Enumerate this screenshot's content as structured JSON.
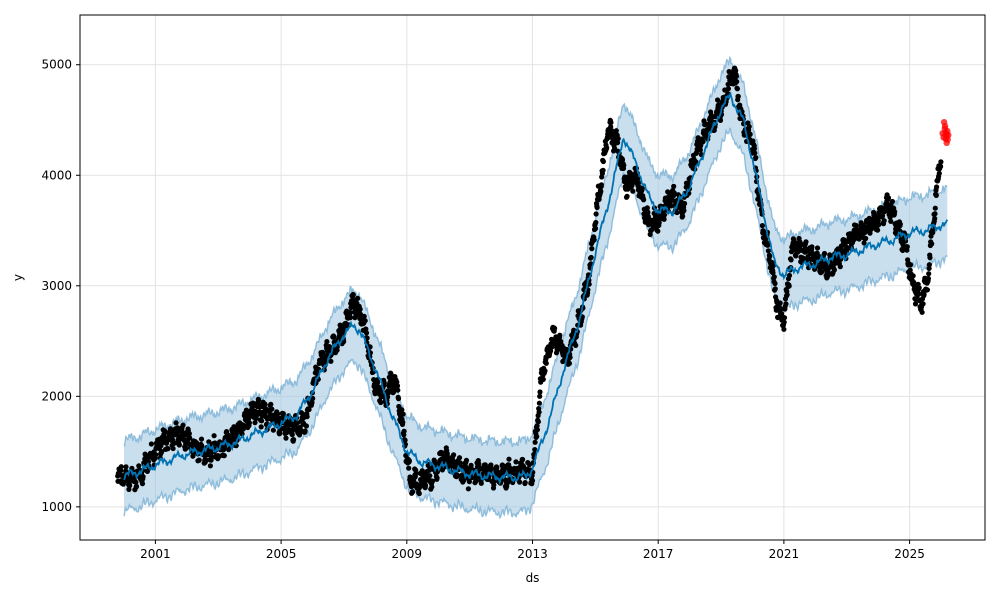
{
  "chart_data": {
    "type": "line",
    "title": "",
    "xlabel": "ds",
    "ylabel": "y",
    "xlim": [
      1998.6,
      2027.4
    ],
    "ylim": [
      700,
      5450
    ],
    "grid": true,
    "x_ticks": [
      {
        "value": 2001,
        "label": "2001"
      },
      {
        "value": 2005,
        "label": "2005"
      },
      {
        "value": 2009,
        "label": "2009"
      },
      {
        "value": 2013,
        "label": "2013"
      },
      {
        "value": 2017,
        "label": "2017"
      },
      {
        "value": 2021,
        "label": "2021"
      },
      {
        "value": 2025,
        "label": "2025"
      }
    ],
    "y_ticks": [
      {
        "value": 1000,
        "label": "1000"
      },
      {
        "value": 2000,
        "label": "2000"
      },
      {
        "value": 3000,
        "label": "3000"
      },
      {
        "value": 4000,
        "label": "4000"
      },
      {
        "value": 5000,
        "label": "5000"
      }
    ],
    "forecast": {
      "x": [
        2000.0,
        2000.5,
        2001.0,
        2001.5,
        2002.0,
        2002.5,
        2003.0,
        2003.5,
        2004.0,
        2004.5,
        2005.0,
        2005.5,
        2006.0,
        2006.5,
        2007.0,
        2007.3,
        2007.5,
        2008.0,
        2008.5,
        2009.0,
        2009.5,
        2010.0,
        2010.5,
        2011.0,
        2011.5,
        2012.0,
        2012.5,
        2012.8,
        2013.0,
        2013.5,
        2014.0,
        2014.5,
        2015.0,
        2015.5,
        2015.9,
        2016.3,
        2016.7,
        2017.0,
        2017.5,
        2018.0,
        2018.5,
        2019.0,
        2019.3,
        2019.7,
        2020.0,
        2020.4,
        2020.7,
        2021.0,
        2021.5,
        2022.0,
        2022.5,
        2023.0,
        2023.5,
        2024.0,
        2024.5,
        2025.0,
        2025.5,
        2026.0,
        2026.2
      ],
      "yhat": [
        1280,
        1320,
        1380,
        1430,
        1480,
        1510,
        1540,
        1580,
        1640,
        1700,
        1760,
        1830,
        2050,
        2350,
        2560,
        2640,
        2600,
        2250,
        1850,
        1500,
        1400,
        1370,
        1330,
        1300,
        1280,
        1270,
        1270,
        1280,
        1350,
        1750,
        2250,
        2700,
        3300,
        3850,
        4350,
        4100,
        3800,
        3680,
        3680,
        3900,
        4250,
        4600,
        4720,
        4500,
        4150,
        3600,
        3200,
        3100,
        3170,
        3200,
        3260,
        3280,
        3330,
        3380,
        3420,
        3480,
        3500,
        3550,
        3550
      ],
      "band_width": 320
    },
    "observed": {
      "x": [
        1999.8,
        2000.2,
        2000.6,
        2001.0,
        2001.3,
        2001.7,
        2002.0,
        2002.5,
        2003.0,
        2003.5,
        2003.9,
        2004.2,
        2004.6,
        2005.0,
        2005.4,
        2005.8,
        2006.2,
        2006.6,
        2007.0,
        2007.3,
        2007.6,
        2008.0,
        2008.3,
        2008.6,
        2008.9,
        2009.1,
        2009.4,
        2009.8,
        2010.2,
        2010.6,
        2011.0,
        2011.4,
        2011.8,
        2012.2,
        2012.6,
        2013.0,
        2013.3,
        2013.7,
        2014.1,
        2014.5,
        2014.8,
        2015.1,
        2015.4,
        2015.7,
        2016.0,
        2016.3,
        2016.7,
        2017.0,
        2017.4,
        2017.8,
        2018.1,
        2018.5,
        2018.8,
        2019.1,
        2019.4,
        2019.7,
        2020.0,
        2020.3,
        2020.6,
        2020.8,
        2021.0,
        2021.3,
        2021.6,
        2022.0,
        2022.4,
        2022.8,
        2023.2,
        2023.6,
        2024.0,
        2024.3,
        2024.6,
        2024.9,
        2025.1,
        2025.4,
        2025.6,
        2025.8,
        2026.0
      ],
      "y": [
        1300,
        1250,
        1330,
        1520,
        1600,
        1680,
        1620,
        1480,
        1510,
        1640,
        1800,
        1880,
        1820,
        1760,
        1700,
        1800,
        2300,
        2420,
        2600,
        2850,
        2700,
        2100,
        2000,
        2180,
        1700,
        1250,
        1200,
        1300,
        1450,
        1350,
        1290,
        1320,
        1280,
        1300,
        1330,
        1300,
        2200,
        2550,
        2350,
        2700,
        3100,
        3800,
        4400,
        4300,
        3900,
        4000,
        3550,
        3600,
        3800,
        3700,
        4100,
        4400,
        4500,
        4700,
        4950,
        4450,
        4300,
        3600,
        3200,
        2800,
        2700,
        3400,
        3300,
        3250,
        3150,
        3300,
        3450,
        3500,
        3600,
        3750,
        3550,
        3350,
        3000,
        2850,
        3100,
        3700,
        4200
      ]
    },
    "recent_points": {
      "x": [
        2026.05,
        2026.1,
        2026.12,
        2026.15,
        2026.18,
        2026.2
      ],
      "y": [
        4380,
        4480,
        4420,
        4330,
        4360,
        4400
      ]
    },
    "colors": {
      "forecast_line": "#0072B2",
      "band_fill": "#9cc5e0",
      "band_edge": "#7ab0d4",
      "observed": "#000000",
      "recent": "#ff0000",
      "grid": "#e3e3e3",
      "axes": "#000000"
    }
  }
}
